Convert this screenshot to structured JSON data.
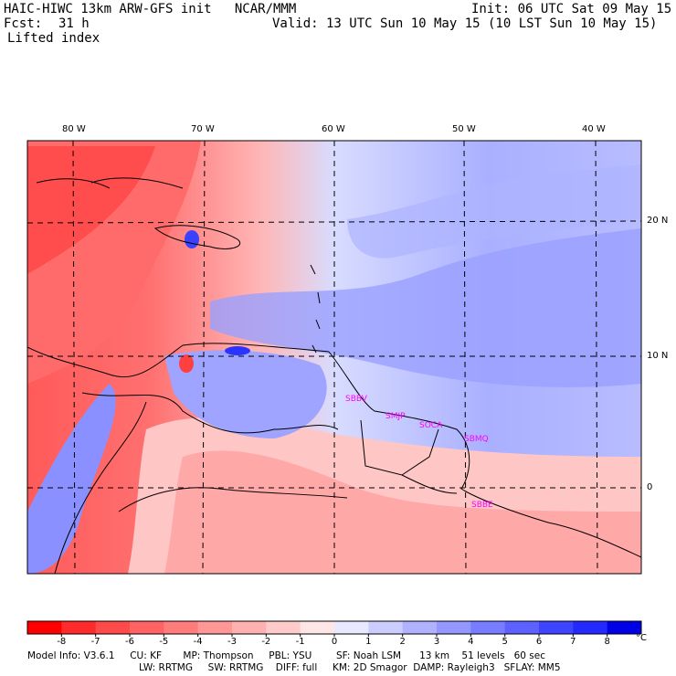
{
  "header": {
    "title_left": "HAIC-HIWC 13km ARW-GFS init   NCAR/MMM",
    "init": "Init: 06 UTC Sat 09 May 15",
    "fcst_label": "Fcst:",
    "fcst_value": "31 h",
    "valid": "Valid: 13 UTC Sun 10 May 15 (10 LST Sun 10 May 15)",
    "field": "Lifted index"
  },
  "map": {
    "lon_labels": [
      "80 W",
      "70 W",
      "60 W",
      "50 W",
      "40 W"
    ],
    "lat_labels": [
      "20 N",
      "10 N",
      "0"
    ],
    "station_labels": [
      "SBBV",
      "SMJP",
      "SOCA",
      "SBMQ",
      "SBBE"
    ]
  },
  "colorbar": {
    "ticks": [
      "-8",
      "-7",
      "-6",
      "-5",
      "-4",
      "-3",
      "-2",
      "-1",
      "0",
      "1",
      "2",
      "3",
      "4",
      "5",
      "6",
      "7",
      "8"
    ],
    "unit": "°C",
    "colors": [
      "#ff0000",
      "#ff2a2a",
      "#ff4a4a",
      "#ff6363",
      "#ff7c7c",
      "#ff9797",
      "#ffb0b0",
      "#ffcaca",
      "#ffe6e6",
      "#e8e8ff",
      "#cccdff",
      "#b0b2ff",
      "#9497ff",
      "#787cff",
      "#5c61ff",
      "#3f45ff",
      "#2329ff",
      "#0000e6"
    ]
  },
  "footer": {
    "line1": "Model Info: V3.6.1     CU: KF       MP: Thompson     PBL: YSU        SF: Noah LSM      13 km    51 levels   60 sec",
    "line2": "LW: RRTMG     SW: RRTMG    DIFF: full     KM: 2D Smagor  DAMP: Rayleigh3   SFLAY: MM5"
  }
}
